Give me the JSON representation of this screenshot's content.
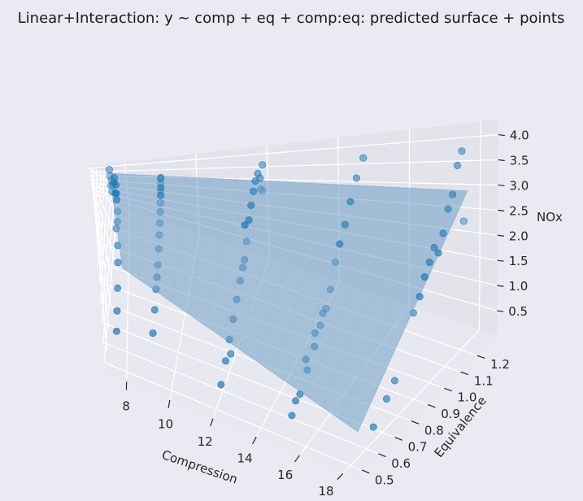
{
  "chart_data": {
    "type": "scatter",
    "title": "Linear+Interaction: y ~ comp + eq + comp:eq: predicted surface + points",
    "xlabel": "Compression",
    "ylabel": "Equivalence",
    "zlabel": "NOx",
    "xlim": [
      7.0,
      18.5
    ],
    "ylim": [
      0.45,
      1.32
    ],
    "zlim": [
      0.0,
      4.3
    ],
    "xticks": [
      8,
      10,
      12,
      14,
      16,
      18
    ],
    "yticks": [
      0.5,
      0.6,
      0.7,
      0.8,
      0.9,
      1.0,
      1.1,
      1.2
    ],
    "zticks": [
      0.5,
      1.0,
      1.5,
      2.0,
      2.5,
      3.0,
      3.5,
      4.0
    ],
    "xtick_labels": [
      "8",
      "10",
      "12",
      "14",
      "16",
      "18"
    ],
    "ytick_labels": [
      "0.5",
      "0.6",
      "0.7",
      "0.8",
      "0.9",
      "1.0",
      "1.1",
      "1.2"
    ],
    "ztick_labels": [
      "0.5",
      "1.0",
      "1.5",
      "2.0",
      "2.5",
      "3.0",
      "3.5",
      "4.0"
    ],
    "surface": {
      "name": "predicted surface",
      "color": "#6f9fc4",
      "corners": [
        {
          "x": 7.5,
          "y": 0.535,
          "z": 2.2
        },
        {
          "x": 18.0,
          "y": 0.535,
          "z": 0.55
        },
        {
          "x": 18.0,
          "y": 1.232,
          "z": 3.15
        },
        {
          "x": 7.5,
          "y": 1.232,
          "z": 3.7
        }
      ]
    },
    "points": {
      "name": "observed points",
      "color": "#1f77b4",
      "x": [
        7.5,
        7.5,
        7.5,
        7.5,
        7.5,
        7.5,
        7.5,
        7.5,
        7.5,
        7.5,
        7.5,
        7.5,
        7.5,
        7.5,
        7.5,
        7.5,
        7.5,
        7.5,
        7.5,
        7.5,
        9.0,
        9.0,
        9.0,
        9.0,
        9.0,
        9.0,
        9.0,
        9.0,
        9.0,
        9.0,
        9.0,
        9.0,
        9.0,
        9.0,
        9.0,
        9.0,
        12.0,
        12.0,
        12.0,
        12.0,
        12.0,
        12.0,
        12.0,
        12.0,
        12.0,
        12.0,
        12.0,
        12.0,
        12.0,
        12.0,
        12.0,
        12.0,
        12.0,
        12.0,
        12.0,
        12.0,
        15.0,
        15.0,
        15.0,
        15.0,
        15.0,
        15.0,
        15.0,
        15.0,
        15.0,
        15.0,
        15.0,
        15.0,
        15.0,
        15.0,
        15.0,
        15.0,
        15.0,
        18.0,
        18.0,
        18.0,
        18.0,
        18.0,
        18.0,
        18.0,
        18.0,
        18.0,
        18.0,
        18.0,
        18.0,
        18.0,
        18.0,
        18.0
      ],
      "y": [
        0.58,
        0.63,
        0.68,
        0.74,
        0.8,
        0.86,
        0.88,
        0.9,
        0.93,
        0.95,
        0.98,
        1.0,
        1.04,
        1.07,
        1.1,
        1.13,
        1.16,
        1.19,
        1.21,
        1.23,
        0.6,
        0.67,
        0.73,
        0.79,
        0.83,
        0.88,
        0.92,
        0.95,
        0.98,
        1.02,
        1.05,
        1.09,
        1.13,
        1.16,
        1.2,
        1.23,
        0.56,
        0.62,
        0.67,
        0.72,
        0.77,
        0.82,
        0.86,
        0.89,
        0.92,
        0.95,
        0.99,
        1.03,
        1.07,
        1.12,
        1.17,
        1.22,
        1.22,
        1.18,
        0.71,
        0.87,
        0.57,
        0.64,
        0.7,
        0.76,
        0.81,
        0.86,
        0.9,
        0.94,
        0.98,
        1.03,
        1.08,
        1.14,
        1.21,
        0.6,
        0.68,
        0.76,
        0.83,
        0.88,
        0.92,
        0.95,
        0.98,
        1.01,
        1.04,
        1.07,
        1.1,
        1.13,
        1.16,
        1.19,
        1.21,
        0.64,
        0.72,
        0.77
      ],
      "z": [
        0.5,
        0.8,
        1.2,
        1.7,
        2.0,
        2.6,
        2.9,
        2.2,
        3.2,
        3.4,
        3.7,
        3.3,
        3.9,
        3.6,
        3.4,
        2.9,
        3.5,
        3.0,
        3.6,
        4.0,
        0.7,
        1.0,
        1.3,
        1.4,
        1.6,
        1.9,
        2.2,
        2.5,
        2.8,
        3.0,
        3.2,
        3.4,
        3.1,
        3.6,
        3.2,
        3.4,
        0.3,
        0.6,
        0.9,
        1.2,
        1.5,
        1.8,
        2.0,
        2.1,
        2.5,
        3.0,
        3.3,
        3.6,
        3.8,
        3.9,
        3.6,
        3.9,
        3.0,
        3.2,
        0.4,
        3.1,
        0.2,
        0.4,
        0.7,
        1.0,
        1.3,
        1.5,
        1.8,
        2.3,
        2.6,
        2.9,
        3.3,
        3.7,
        4.0,
        0.4,
        1.0,
        1.3,
        1.5,
        1.8,
        2.0,
        2.3,
        2.5,
        2.7,
        2.5,
        2.8,
        3.2,
        3.4,
        3.9,
        4.1,
        2.6,
        0.3,
        0.6,
        0.8
      ]
    }
  }
}
